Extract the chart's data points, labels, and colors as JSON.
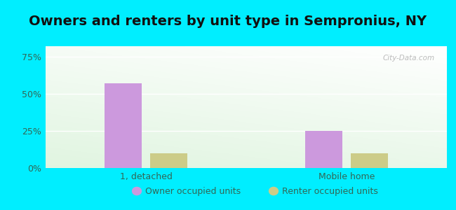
{
  "title": "Owners and renters by unit type in Sempronius, NY",
  "categories": [
    "1, detached",
    "Mobile home"
  ],
  "owner_values": [
    57.0,
    25.0
  ],
  "renter_values": [
    10.0,
    10.0
  ],
  "owner_color": "#cc99dd",
  "renter_color": "#cccc88",
  "bar_width": 0.28,
  "yticks": [
    0,
    25,
    50,
    75
  ],
  "ytick_labels": [
    "0%",
    "25%",
    "50%",
    "75%"
  ],
  "ylim": [
    0,
    82
  ],
  "bgcolor_outer": "#00eeff",
  "text_color": "#336655",
  "legend_owner": "Owner occupied units",
  "legend_renter": "Renter occupied units",
  "watermark": "City-Data.com",
  "title_fontsize": 14,
  "tick_fontsize": 9,
  "legend_fontsize": 9
}
